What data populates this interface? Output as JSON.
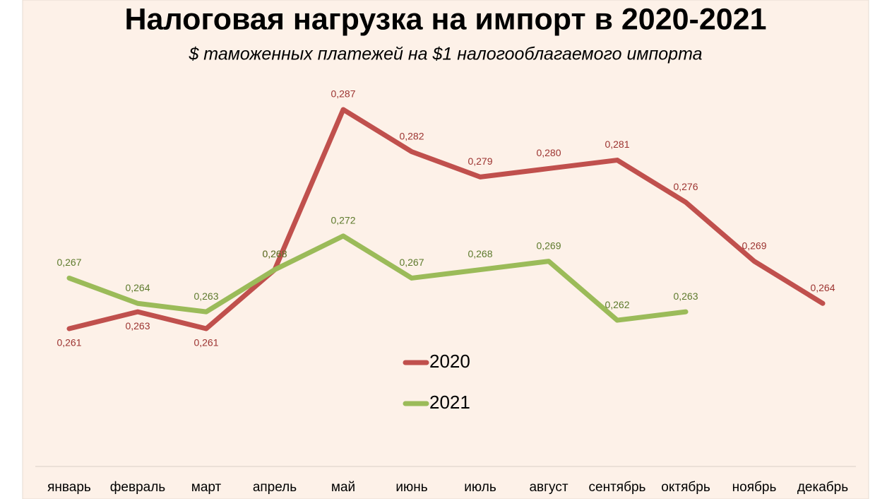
{
  "chart_data": {
    "type": "line",
    "title": "Налоговая нагрузка на импорт в 2020-2021",
    "subtitle": "$ таможенных платежей на $1 налогооблагаемого импорта",
    "categories": [
      "январь",
      "февраль",
      "март",
      "апрель",
      "май",
      "июнь",
      "июль",
      "август",
      "сентябрь",
      "октябрь",
      "ноябрь",
      "декабрь"
    ],
    "series": [
      {
        "name": "2020",
        "color": "#c0504d",
        "values": [
          0.261,
          0.263,
          0.261,
          0.268,
          0.287,
          0.282,
          0.279,
          0.28,
          0.281,
          0.276,
          0.269,
          0.264
        ],
        "value_labels": [
          "0,261",
          "0,263",
          "0,261",
          "0,268",
          "0,287",
          "0,282",
          "0,279",
          "0,280",
          "0,281",
          "0,276",
          "0,269",
          "0,264"
        ]
      },
      {
        "name": "2021",
        "color": "#9bbb59",
        "values": [
          0.267,
          0.264,
          0.263,
          0.268,
          0.272,
          0.267,
          0.268,
          0.269,
          0.262,
          0.263,
          null,
          null
        ],
        "value_labels": [
          "0,267",
          "0,264",
          "0,263",
          "0,268",
          "0,272",
          "0,267",
          "0,268",
          "0,269",
          "0,262",
          "0,263",
          null,
          null
        ]
      }
    ],
    "legend": "center"
  }
}
